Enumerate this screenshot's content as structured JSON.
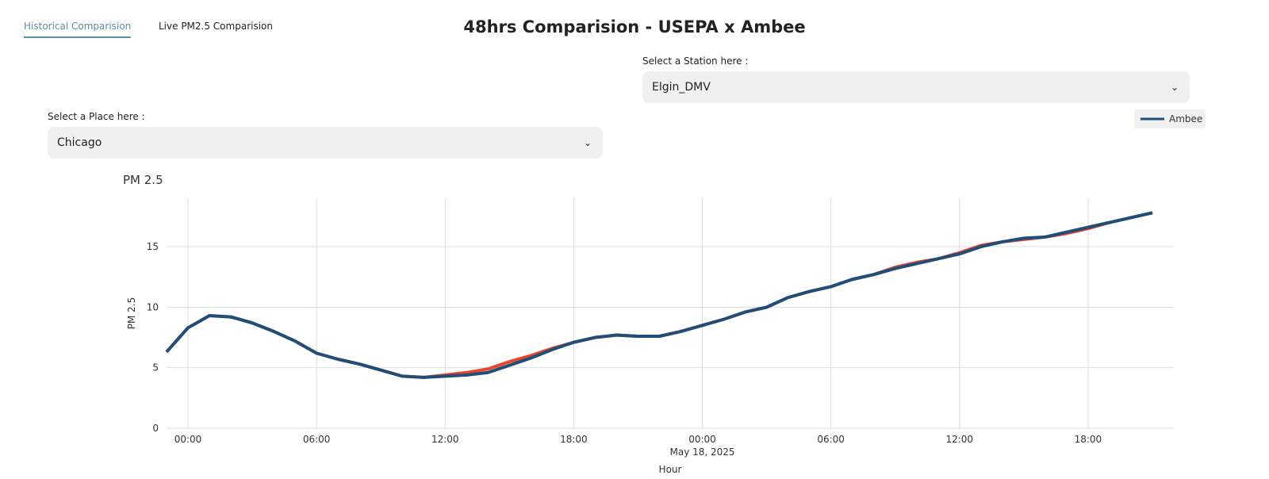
{
  "tabs": [
    "Historical Comparision",
    "Live PM2.5 Comparision"
  ],
  "title": "48hrs Comparision - USEPA x Ambee",
  "place": {
    "label": "Select a Place here :",
    "value": "Chicago"
  },
  "station": {
    "label": "Select a Station here :",
    "value": "Elgin_DMV"
  },
  "chart_data": {
    "type": "line",
    "title": "PM 2.5",
    "y_label": "PM 2.5",
    "x_label": "Hour",
    "x": [
      -1,
      0,
      1,
      2,
      3,
      4,
      5,
      6,
      7,
      8,
      9,
      10,
      11,
      12,
      13,
      14,
      15,
      16,
      17,
      18,
      19,
      20,
      21,
      22,
      23,
      24,
      25,
      26,
      27,
      28,
      29,
      30,
      31,
      32,
      33,
      34,
      35,
      36,
      37,
      38,
      39,
      40,
      41,
      42,
      43,
      44,
      45
    ],
    "series": [
      {
        "color": "#e8452c",
        "values": [
          6.3,
          8.3,
          9.3,
          9.2,
          8.7,
          8.0,
          7.2,
          6.2,
          5.7,
          5.3,
          4.8,
          4.3,
          4.2,
          4.4,
          4.6,
          4.9,
          5.5,
          6.0,
          6.6,
          7.1,
          7.5,
          7.7,
          7.6,
          7.6,
          8.0,
          8.5,
          9.0,
          9.6,
          10.0,
          10.8,
          11.3,
          11.7,
          12.3,
          12.7,
          13.3,
          13.7,
          14.0,
          14.5,
          15.1,
          15.4,
          15.6,
          15.8,
          16.1,
          16.5,
          17.0,
          17.4,
          17.8
        ]
      },
      {
        "name": "Ambee",
        "color": "#1f4e79",
        "values": [
          6.3,
          8.3,
          9.3,
          9.2,
          8.7,
          8.0,
          7.2,
          6.2,
          5.7,
          5.3,
          4.8,
          4.3,
          4.2,
          4.3,
          4.4,
          4.6,
          5.2,
          5.8,
          6.5,
          7.1,
          7.5,
          7.7,
          7.6,
          7.6,
          8.0,
          8.5,
          9.0,
          9.6,
          10.0,
          10.8,
          11.3,
          11.7,
          12.3,
          12.7,
          13.2,
          13.6,
          14.0,
          14.4,
          15.0,
          15.4,
          15.7,
          15.8,
          16.2,
          16.6,
          17.0,
          17.4,
          17.8
        ]
      }
    ],
    "xlim": [
      -1,
      46
    ],
    "xticks": [
      {
        "value": 0,
        "label": "00:00"
      },
      {
        "value": 6,
        "label": "06:00"
      },
      {
        "value": 12,
        "label": "12:00"
      },
      {
        "value": 18,
        "label": "18:00"
      },
      {
        "value": 24,
        "label": "00:00"
      },
      {
        "value": 30,
        "label": "06:00"
      },
      {
        "value": 36,
        "label": "12:00"
      },
      {
        "value": 42,
        "label": "18:00"
      }
    ],
    "annotations": [
      {
        "x": 24,
        "text": "May 18, 2025"
      }
    ],
    "ylim": [
      0,
      19
    ],
    "yticks": [
      0,
      5,
      10,
      15
    ],
    "grid": true,
    "legend": "top-right"
  }
}
